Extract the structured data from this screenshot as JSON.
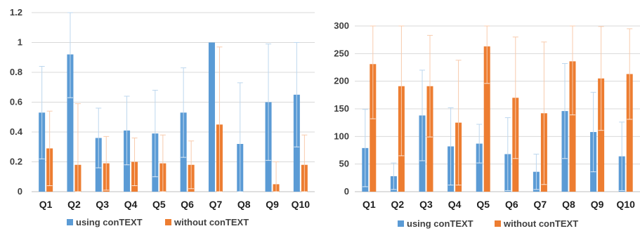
{
  "colors": {
    "using": "#5B9BD5",
    "without": "#ED7D31",
    "grid": "#D9D9D9",
    "axis": "#BFBFBF"
  },
  "legend": {
    "using": "using conTEXT",
    "without": "without conTEXT"
  },
  "chart_data": [
    {
      "type": "bar",
      "categories": [
        "Q1",
        "Q2",
        "Q3",
        "Q4",
        "Q5",
        "Q6",
        "Q7",
        "Q8",
        "Q9",
        "Q10"
      ],
      "ylim": [
        0,
        1.2
      ],
      "yticks": [
        0,
        0.2,
        0.4,
        0.6,
        0.8,
        1,
        1.2
      ],
      "yticklabels": [
        "0",
        "0.2",
        "0.4",
        "0.6",
        "0.8",
        "1",
        "1.2"
      ],
      "grid": true,
      "legend_position": "bottom",
      "series": [
        {
          "name": "using conTEXT",
          "values": [
            0.53,
            0.92,
            0.36,
            0.41,
            0.39,
            0.53,
            1.0,
            0.32,
            0.6,
            0.65
          ],
          "err": [
            0.31,
            0.29,
            0.2,
            0.23,
            0.29,
            0.3,
            0.0,
            0.41,
            0.39,
            0.35
          ]
        },
        {
          "name": "without conTEXT",
          "values": [
            0.29,
            0.18,
            0.19,
            0.2,
            0.19,
            0.18,
            0.45,
            0.0,
            0.05,
            0.18
          ],
          "err": [
            0.25,
            0.41,
            0.18,
            0.16,
            0.19,
            0.16,
            0.52,
            0.0,
            0.15,
            0.2
          ]
        }
      ]
    },
    {
      "type": "bar",
      "categories": [
        "Q1",
        "Q2",
        "Q3",
        "Q4",
        "Q5",
        "Q6",
        "Q7",
        "Q8",
        "Q9",
        "Q10"
      ],
      "ylim": [
        0,
        300
      ],
      "yticks": [
        0,
        50,
        100,
        150,
        200,
        250,
        300
      ],
      "yticklabels": [
        "0",
        "50",
        "100",
        "150",
        "200",
        "250",
        "300"
      ],
      "grid": true,
      "legend_position": "bottom",
      "series": [
        {
          "name": "using conTEXT",
          "values": [
            79,
            28,
            138,
            82,
            87,
            68,
            36,
            146,
            108,
            64
          ],
          "err": [
            70,
            24,
            82,
            70,
            35,
            66,
            32,
            86,
            72,
            62
          ]
        },
        {
          "name": "without conTEXT",
          "values": [
            231,
            191,
            191,
            125,
            263,
            170,
            142,
            236,
            205,
            213
          ],
          "err": [
            99,
            126,
            92,
            113,
            67,
            110,
            129,
            97,
            94,
            82
          ]
        }
      ]
    }
  ]
}
